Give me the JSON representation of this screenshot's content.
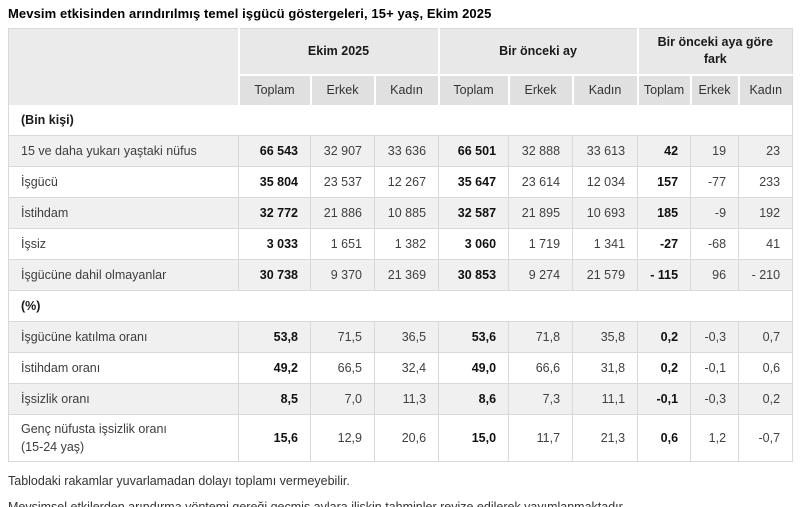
{
  "title": "Mevsim etkisinden arındırılmış temel işgücü göstergeleri, 15+ yaş, Ekim 2025",
  "chart_data": {
    "type": "table",
    "title": "Mevsim etkisinden arındırılmış temel işgücü göstergeleri, 15+ yaş, Ekim 2025",
    "column_groups": [
      "Ekim 2025",
      "Bir önceki ay",
      "Bir önceki aya göre fark"
    ],
    "sub_columns": [
      "Toplam",
      "Erkek",
      "Kadın"
    ],
    "sections": [
      {
        "label": "(Bin kişi)",
        "rows": [
          {
            "label": "15 ve daha yukarı yaştaki nüfus",
            "values": [
              "66 543",
              "32 907",
              "33 636",
              "66 501",
              "32 888",
              "33 613",
              "42",
              "19",
              "23"
            ]
          },
          {
            "label": "İşgücü",
            "values": [
              "35 804",
              "23 537",
              "12 267",
              "35 647",
              "23 614",
              "12 034",
              "157",
              "-77",
              "233"
            ]
          },
          {
            "label": "İstihdam",
            "values": [
              "32 772",
              "21 886",
              "10 885",
              "32 587",
              "21 895",
              "10 693",
              "185",
              "-9",
              "192"
            ]
          },
          {
            "label": "İşsiz",
            "values": [
              "3 033",
              "1 651",
              "1 382",
              "3 060",
              "1 719",
              "1 341",
              "-27",
              "-68",
              "41"
            ]
          },
          {
            "label": "İşgücüne dahil olmayanlar",
            "values": [
              "30 738",
              "9 370",
              "21 369",
              "30 853",
              "9 274",
              "21 579",
              "- 115",
              "96",
              "- 210"
            ]
          }
        ]
      },
      {
        "label": "(%)",
        "rows": [
          {
            "label": "İşgücüne katılma oranı",
            "values": [
              "53,8",
              "71,5",
              "36,5",
              "53,6",
              "71,8",
              "35,8",
              "0,2",
              "-0,3",
              "0,7"
            ]
          },
          {
            "label": "İstihdam oranı",
            "values": [
              "49,2",
              "66,5",
              "32,4",
              "49,0",
              "66,6",
              "31,8",
              "0,2",
              "-0,1",
              "0,6"
            ]
          },
          {
            "label": "İşsizlik oranı",
            "values": [
              "8,5",
              "7,0",
              "11,3",
              "8,6",
              "7,3",
              "11,1",
              "-0,1",
              "-0,3",
              "0,2"
            ]
          },
          {
            "label": "Genç nüfusta işsizlik oranı\n(15-24 yaş)",
            "values": [
              "15,6",
              "12,9",
              "20,6",
              "15,0",
              "11,7",
              "21,3",
              "0,6",
              "1,2",
              "-0,7"
            ]
          }
        ]
      }
    ]
  },
  "footnotes": {
    "note1": "Tablodaki rakamlar yuvarlamadan dolayı toplamı vermeyebilir.",
    "note2": "Mevsimsel etkilerden arındırma yöntemi gereği geçmiş aylara ilişkin tahminler revize edilerek yayımlanmaktadır."
  },
  "colors": {
    "header_group_bg": "#e8e8e8",
    "header_sub_bg": "#e0e0e0",
    "corner_bg": "#ebebeb",
    "stripe_row_bg": "#f0f0f0",
    "border": "#d9d9d9",
    "title_text": "#000000",
    "body_text": "#404040"
  }
}
